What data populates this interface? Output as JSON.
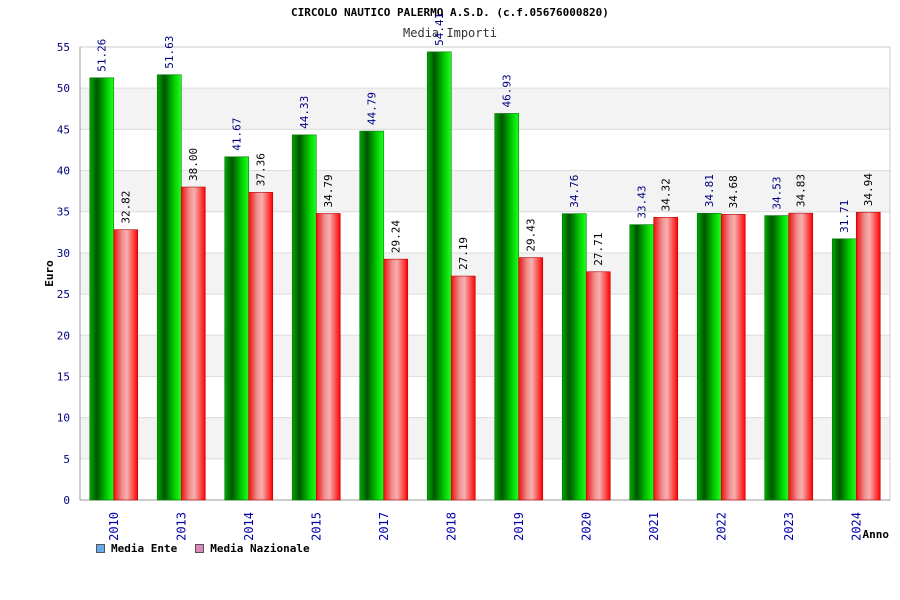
{
  "chart_data": {
    "type": "bar",
    "title": "CIRCOLO NAUTICO PALERMO A.S.D. (c.f.05676000820)",
    "subtitle": "Media Importi",
    "xlabel": "Anno",
    "ylabel": "Euro",
    "ylim": [
      0,
      55
    ],
    "yticks": [
      "0",
      "5",
      "10",
      "15",
      "20",
      "25",
      "30",
      "35",
      "40",
      "45",
      "50",
      "55"
    ],
    "grid": true,
    "legend_position": "bottom-left",
    "categories": [
      "2010",
      "2013",
      "2014",
      "2015",
      "2017",
      "2018",
      "2019",
      "2020",
      "2021",
      "2022",
      "2023",
      "2024"
    ],
    "series": [
      {
        "name": "Media Ente",
        "values": [
          51.26,
          51.63,
          41.67,
          44.33,
          44.79,
          54.41,
          46.93,
          34.76,
          33.43,
          34.81,
          34.53,
          31.71
        ],
        "labels": [
          "51.26",
          "51.63",
          "41.67",
          "44.33",
          "44.79",
          "54.41",
          "46.93",
          "34.76",
          "33.43",
          "34.81",
          "34.53",
          "31.71"
        ],
        "color": "#00cc00",
        "legend_color": "#66aaee"
      },
      {
        "name": "Media Nazionale",
        "values": [
          32.82,
          38.0,
          37.36,
          34.79,
          29.24,
          27.19,
          29.43,
          27.71,
          34.32,
          34.68,
          34.83,
          34.94
        ],
        "labels": [
          "32.82",
          "38.00",
          "37.36",
          "34.79",
          "29.24",
          "27.19",
          "29.43",
          "27.71",
          "34.32",
          "34.68",
          "34.83",
          "34.94"
        ],
        "color": "#ee1111",
        "legend_color": "#dd88bb"
      }
    ]
  }
}
